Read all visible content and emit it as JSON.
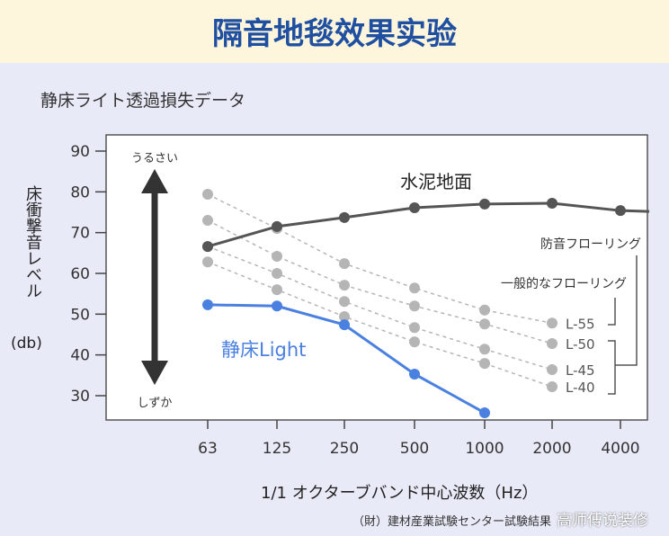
{
  "title": "隔音地毯效果实验",
  "subtitle": "静床ライト透過損失データ",
  "source": "（財）建材産業試験センター試験結果",
  "watermark": "高师傅说装修",
  "colors": {
    "title": "#1f4fa0",
    "concrete": "#555555",
    "light": "#4a80e0",
    "reference": "#b5b5b5"
  },
  "chart_data": {
    "type": "line",
    "xlabel": "1/1 オクターブバンド中心波数（Hz）",
    "ylabel": "床衝撃音レベル",
    "yunit": "(db)",
    "x": [
      "63",
      "125",
      "250",
      "500",
      "1000",
      "2000",
      "4000"
    ],
    "yticks": [
      90,
      80,
      70,
      60,
      50,
      40,
      30
    ],
    "ylim": [
      26,
      93
    ],
    "grid": false,
    "arrow_top_label": "うるさい",
    "arrow_bottom_label": "しずか",
    "series": [
      {
        "name": "水泥地面",
        "style": "solid-dark",
        "values": [
          66.6,
          71.5,
          73.7,
          76.1,
          77.0,
          77.2,
          75.4
        ]
      },
      {
        "name": "静床Light",
        "style": "solid-blue",
        "values": [
          52.3,
          52.0,
          47.4,
          35.3,
          25.8,
          null,
          null
        ]
      },
      {
        "name": "L-55",
        "style": "dashed-gray",
        "values": [
          79.4,
          71.0,
          62.4,
          56.4,
          51.0,
          47.8,
          null
        ]
      },
      {
        "name": "L-50",
        "style": "dashed-gray",
        "values": [
          73.0,
          64.2,
          57.1,
          52.0,
          47.6,
          42.8,
          null
        ]
      },
      {
        "name": "L-45",
        "style": "dashed-gray",
        "values": [
          66.6,
          60.0,
          53.1,
          46.7,
          41.4,
          36.4,
          null
        ]
      },
      {
        "name": "L-40",
        "style": "dashed-gray",
        "values": [
          62.8,
          56.0,
          49.4,
          43.2,
          37.9,
          32.2,
          null
        ]
      }
    ],
    "groups": [
      {
        "label": "一般的なフローリング",
        "members": [
          "L-55"
        ]
      },
      {
        "label": "防音フローリング",
        "members": [
          "L-50",
          "L-45",
          "L-40"
        ]
      }
    ]
  }
}
